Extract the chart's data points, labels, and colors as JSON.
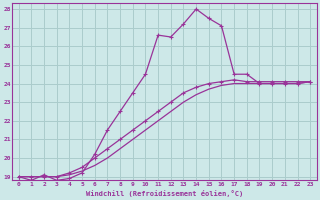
{
  "xlabel": "Windchill (Refroidissement éolien,°C)",
  "bg_color": "#cde8e8",
  "grid_color": "#aacccc",
  "line_color": "#993399",
  "xlim": [
    -0.5,
    23.5
  ],
  "ylim": [
    18.8,
    28.3
  ],
  "xticks": [
    0,
    1,
    2,
    3,
    4,
    5,
    6,
    7,
    8,
    9,
    10,
    11,
    12,
    13,
    14,
    15,
    16,
    17,
    18,
    19,
    20,
    21,
    22,
    23
  ],
  "yticks": [
    19,
    20,
    21,
    22,
    23,
    24,
    25,
    26,
    27,
    28
  ],
  "series1": [
    19.0,
    18.8,
    19.1,
    18.8,
    18.9,
    19.2,
    20.2,
    21.5,
    22.5,
    23.5,
    24.5,
    26.6,
    26.5,
    27.2,
    28.0,
    27.5,
    27.1,
    24.5,
    24.5,
    24.0,
    24.0,
    24.0,
    24.0,
    24.1
  ],
  "series2": [
    19.0,
    19.0,
    19.0,
    19.0,
    19.2,
    19.5,
    20.0,
    20.5,
    21.0,
    21.5,
    22.0,
    22.5,
    23.0,
    23.5,
    23.8,
    24.0,
    24.1,
    24.2,
    24.1,
    24.1,
    24.1,
    24.1,
    24.1,
    24.1
  ],
  "series3": [
    19.0,
    19.0,
    19.0,
    19.0,
    19.1,
    19.3,
    19.6,
    20.0,
    20.5,
    21.0,
    21.5,
    22.0,
    22.5,
    23.0,
    23.4,
    23.7,
    23.9,
    24.0,
    24.0,
    24.0,
    24.0,
    24.0,
    24.0,
    24.1
  ]
}
